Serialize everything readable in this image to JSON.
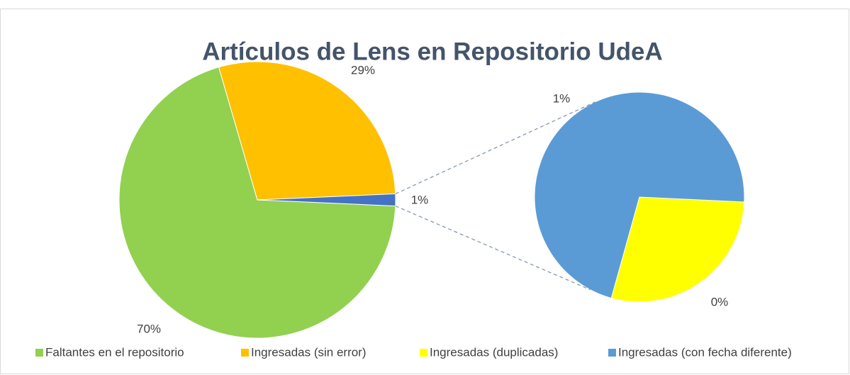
{
  "chart_data": {
    "type": "pie-of-pie",
    "title": "Artículos de Lens en Repositorio UdeA",
    "categories": [
      "Faltantes en el repositorio",
      "Ingresadas (sin error)",
      "Ingresadas (duplicadas)",
      "Ingresadas (con fecha diferente)"
    ],
    "values": [
      69.8,
      28.8,
      0.4,
      1.0
    ],
    "value_labels": [
      "70%",
      "29%",
      "0%",
      "1%"
    ],
    "colors": [
      "#92d050",
      "#ffc000",
      "#ffff00",
      "#5b9bd5"
    ],
    "other_color": "#4472c4",
    "other_label": "1%",
    "legend": "bottom"
  }
}
